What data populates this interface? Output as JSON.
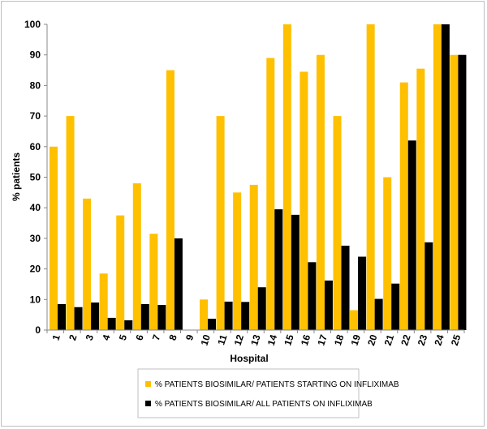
{
  "chart_data": {
    "type": "bar",
    "title": "",
    "xlabel": "Hospital",
    "ylabel": "% patients",
    "ylim": [
      0,
      100
    ],
    "yticks": [
      0,
      10,
      20,
      30,
      40,
      50,
      60,
      70,
      80,
      90,
      100
    ],
    "grid": false,
    "legend_position": "bottom-center",
    "categories": [
      "1",
      "2",
      "3",
      "4",
      "5",
      "6",
      "7",
      "8",
      "9",
      "10",
      "11",
      "12",
      "13",
      "14",
      "15",
      "16",
      "17",
      "18",
      "19",
      "20",
      "21",
      "22",
      "23",
      "24",
      "25"
    ],
    "series": [
      {
        "name": "% PATIENTS BIOSIMILAR/ PATIENTS STARTING ON INFLIXIMAB",
        "color": "#FFC000",
        "values": [
          60,
          70,
          43,
          18.5,
          37.5,
          48,
          31.5,
          85,
          0,
          10,
          70,
          45,
          47.5,
          89,
          100,
          84.5,
          90,
          70,
          6.5,
          100,
          50,
          81,
          85.5,
          100,
          90
        ]
      },
      {
        "name": "% PATIENTS BIOSIMILAR/ ALL PATIENTS ON INFLIXIMAB",
        "color": "#000000",
        "values": [
          8.5,
          7.5,
          9,
          4,
          3.2,
          8.5,
          8.2,
          30,
          0,
          3.7,
          9.3,
          9.2,
          14,
          39.5,
          37.7,
          22.2,
          16.2,
          27.6,
          24,
          10.2,
          15.2,
          62,
          28.7,
          100,
          90
        ]
      }
    ]
  }
}
